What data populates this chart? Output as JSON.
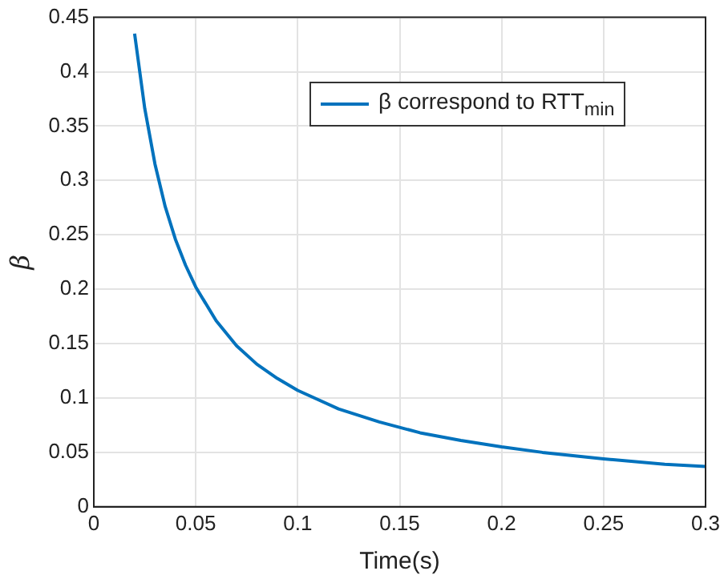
{
  "chart_data": {
    "type": "line",
    "xlabel": "Time(s)",
    "ylabel": "β",
    "x": [
      0.02,
      0.025,
      0.03,
      0.035,
      0.04,
      0.045,
      0.05,
      0.06,
      0.07,
      0.08,
      0.09,
      0.1,
      0.12,
      0.14,
      0.16,
      0.18,
      0.2,
      0.22,
      0.25,
      0.28,
      0.3
    ],
    "series": [
      {
        "name": "β correspond to RTT$_{min}$",
        "color": "#0072bd",
        "values": [
          0.435,
          0.366,
          0.315,
          0.276,
          0.246,
          0.222,
          0.202,
          0.171,
          0.148,
          0.131,
          0.118,
          0.107,
          0.09,
          0.078,
          0.068,
          0.061,
          0.055,
          0.05,
          0.044,
          0.039,
          0.037
        ]
      }
    ],
    "xlim": [
      0,
      0.3
    ],
    "xticks": [
      0,
      0.05,
      0.1,
      0.15,
      0.2,
      0.25,
      0.3
    ],
    "ylim": [
      0,
      0.45
    ],
    "yticks": [
      0,
      0.05,
      0.1,
      0.15,
      0.2,
      0.25,
      0.3,
      0.35,
      0.4,
      0.45
    ],
    "grid": true,
    "legend": "top right",
    "marker": "none",
    "line_style": "solid"
  }
}
